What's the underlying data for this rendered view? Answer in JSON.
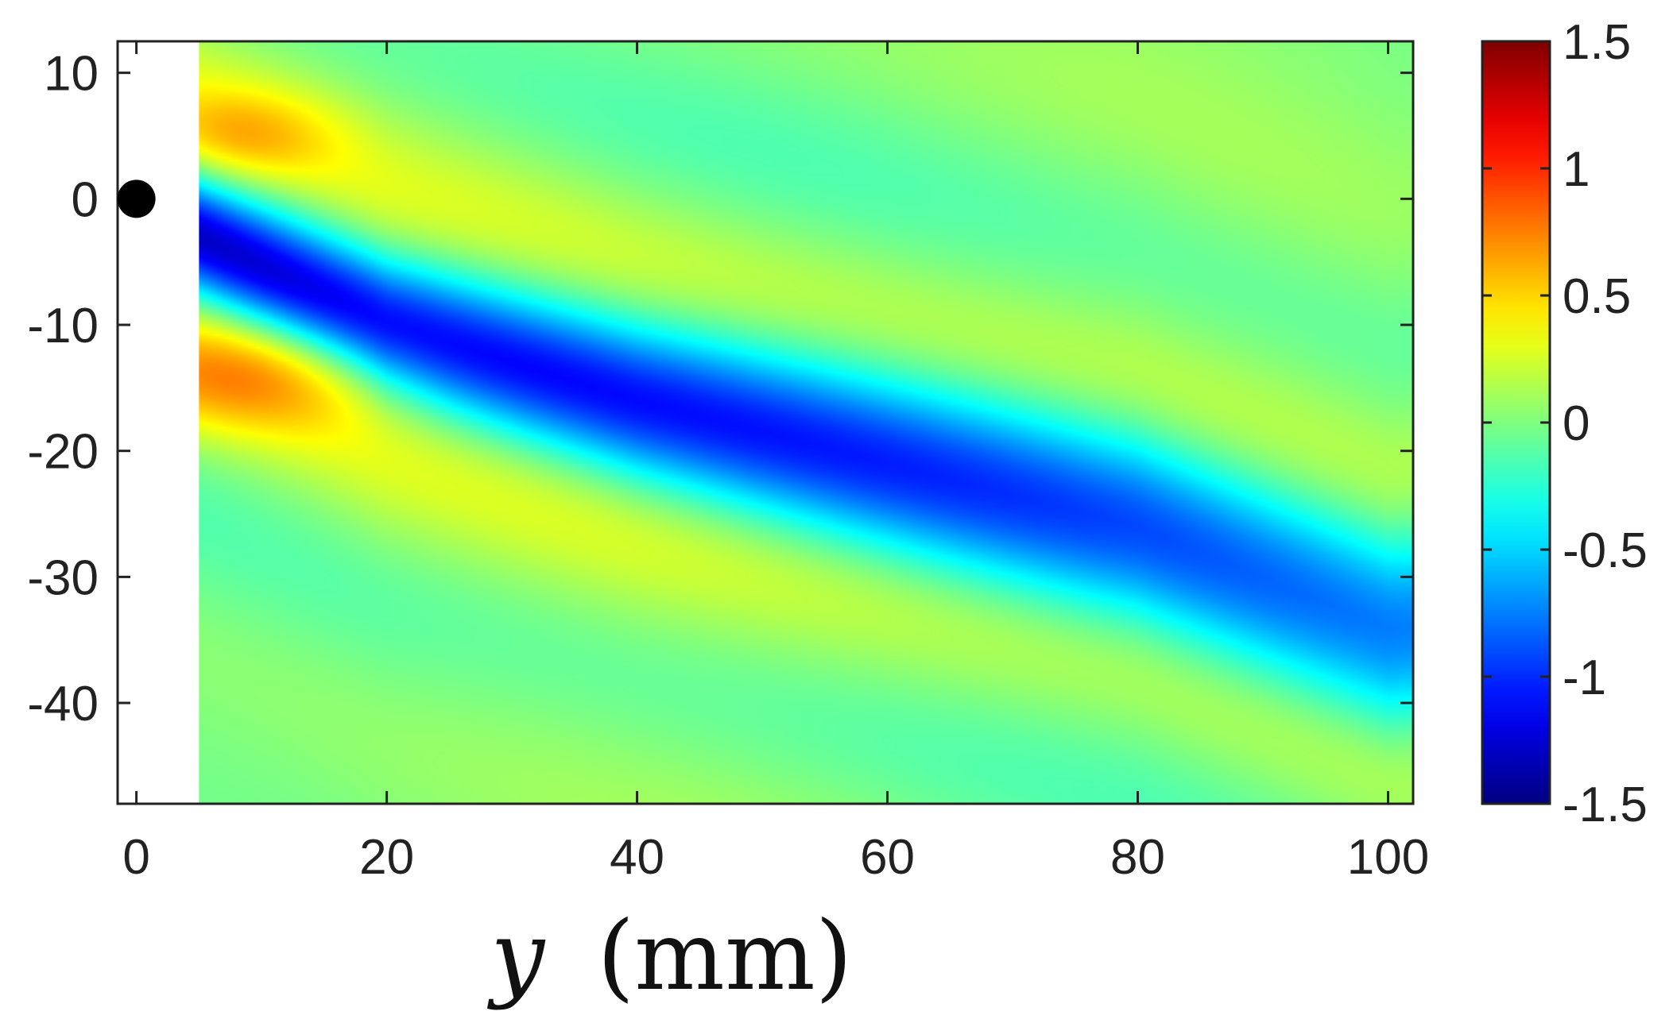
{
  "chart_data": {
    "type": "heatmap",
    "title": "",
    "xlabel": "y",
    "xlabel_unit": "(mm)",
    "ylabel": "",
    "xlim": [
      -1.5,
      102
    ],
    "ylim": [
      -48,
      12.5
    ],
    "x_ticks": [
      0,
      20,
      40,
      60,
      80,
      100
    ],
    "x_tick_labels": [
      "0",
      "20",
      "40",
      "60",
      "80",
      "100"
    ],
    "y_ticks": [
      10,
      0,
      -10,
      -20,
      -30,
      -40
    ],
    "y_tick_labels": [
      "10",
      "0",
      "-10",
      "-20",
      "-30",
      "-40"
    ],
    "data_region_x": [
      5,
      102
    ],
    "colormap": "jet",
    "colorbar": {
      "range": [
        -1.5,
        1.5
      ],
      "ticks": [
        1.5,
        1,
        0.5,
        0,
        -0.5,
        -1,
        -1.5
      ],
      "tick_labels": [
        "1.5",
        "1",
        "0.5",
        "0",
        "-0.5",
        "-1",
        "-1.5"
      ]
    },
    "marker": {
      "x": 0,
      "y": 0,
      "shape": "filled-circle",
      "color": "#000000"
    },
    "features": [
      {
        "name": "negative band",
        "value": -1.35,
        "path_x": [
          5,
          20,
          40,
          60,
          80,
          100
        ],
        "path_y": [
          -3,
          -10,
          -16,
          -21,
          -26,
          -34
        ]
      },
      {
        "name": "positive lobe upper",
        "value": 0.6,
        "x": 8,
        "y": 5
      },
      {
        "name": "positive lobe lower",
        "value": 0.75,
        "x": 8,
        "y": -14
      }
    ]
  }
}
